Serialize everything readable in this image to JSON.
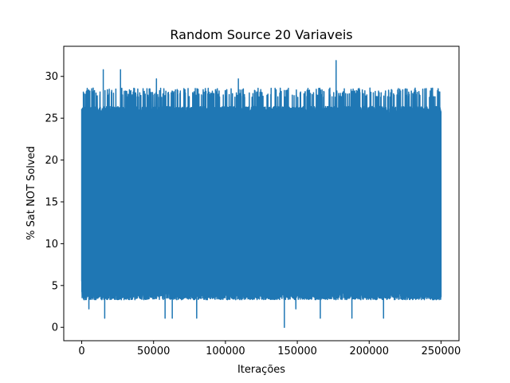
{
  "chart_data": {
    "type": "line",
    "title": "Random Source 20 Variaveis",
    "xlabel": "Iterações",
    "ylabel": "% Sat NOT Solved",
    "xlim": [
      -12500,
      262500
    ],
    "ylim": [
      -1.6,
      33.6
    ],
    "x_ticks": [
      0,
      50000,
      100000,
      150000,
      200000,
      250000
    ],
    "y_ticks": [
      0,
      5,
      10,
      15,
      20,
      25,
      30
    ],
    "grid": false,
    "legend": "none",
    "series": [
      {
        "color": "#1f77b4",
        "x_range": [
          0,
          250000
        ],
        "noise_band": {
          "typical_low": 3.3,
          "typical_high": 26.4,
          "min": 0.0,
          "max": 31.9
        },
        "sampled_points": [
          [
            0,
            5.5
          ],
          [
            500,
            25.3
          ],
          [
            1500,
            3.3
          ],
          [
            3000,
            26.4
          ],
          [
            5000,
            2.2
          ],
          [
            8000,
            28.6
          ],
          [
            15000,
            30.8
          ],
          [
            16000,
            1.1
          ],
          [
            27000,
            30.8
          ],
          [
            37000,
            3.3
          ],
          [
            52000,
            29.7
          ],
          [
            58000,
            1.1
          ],
          [
            63000,
            1.1
          ],
          [
            80000,
            1.1
          ],
          [
            109000,
            29.7
          ],
          [
            141000,
            0.0
          ],
          [
            149000,
            2.2
          ],
          [
            166000,
            1.1
          ],
          [
            177000,
            31.9
          ],
          [
            188000,
            1.1
          ],
          [
            210000,
            1.1
          ],
          [
            232000,
            28.6
          ],
          [
            250000,
            5.5
          ]
        ]
      }
    ]
  }
}
